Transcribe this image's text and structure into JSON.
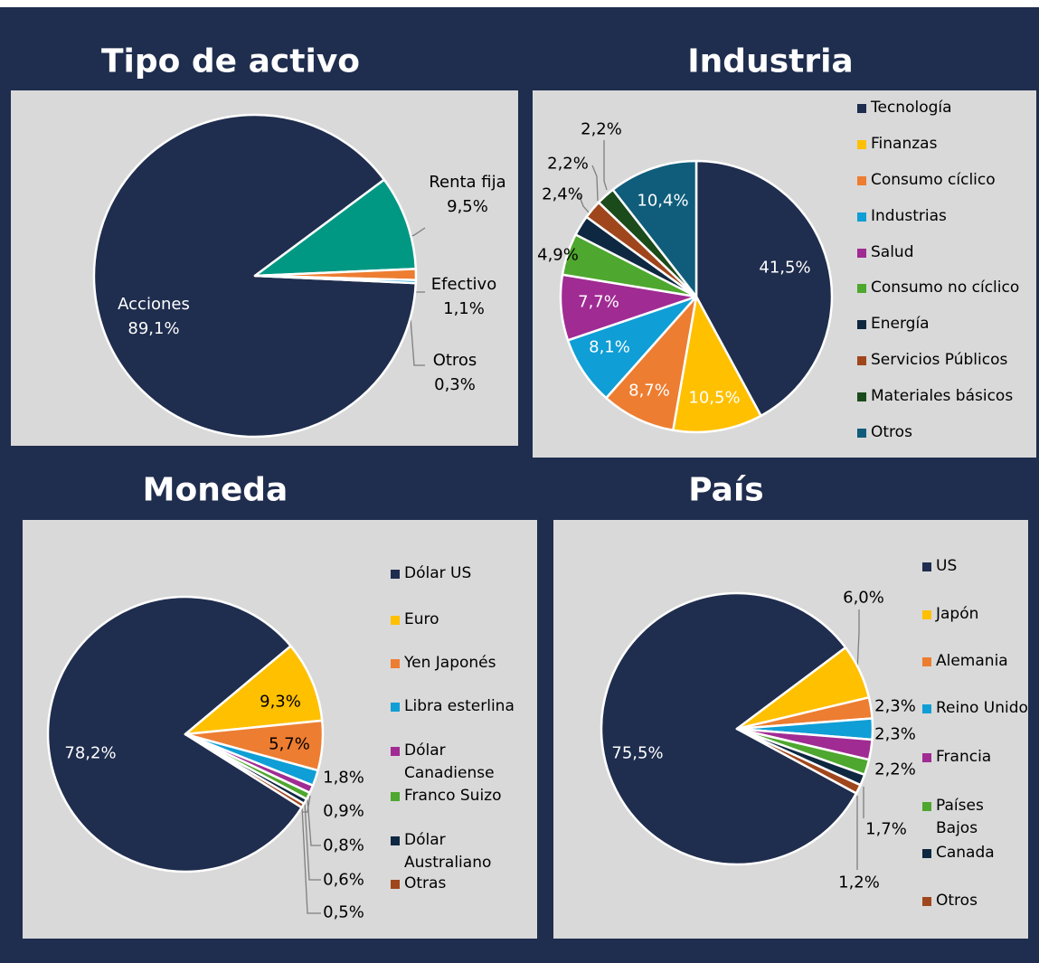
{
  "chart_data": [
    {
      "type": "pie",
      "title": "Tipo de activo",
      "categories": [
        "Acciones",
        "Renta fija",
        "Efectivo",
        "Otros"
      ],
      "values": [
        89.1,
        9.5,
        1.1,
        0.3
      ],
      "value_labels": [
        "89,1%",
        "9,5%",
        "1,1%",
        "0,3%"
      ],
      "colors": [
        "#1f2d4e",
        "#009883",
        "#ed7d31",
        "#0f9ed5"
      ]
    },
    {
      "type": "pie",
      "title": "Industria",
      "categories": [
        "Tecnología",
        "Finanzas",
        "Consumo cíclico",
        "Industrias",
        "Salud",
        "Consumo no cíclico",
        "Energía",
        "Servicios Públicos",
        "Materiales básicos",
        "Otros"
      ],
      "values": [
        41.5,
        10.5,
        8.7,
        8.1,
        7.7,
        4.9,
        2.4,
        2.2,
        2.2,
        10.4
      ],
      "value_labels": [
        "41,5%",
        "10,5%",
        "8,7%",
        "8,1%",
        "7,7%",
        "4,9%",
        "2,4%",
        "2,2%",
        "2,2%",
        "10,4%"
      ],
      "colors": [
        "#1f2d4e",
        "#ffc000",
        "#ed7d31",
        "#0f9ed5",
        "#a02b93",
        "#4ea72e",
        "#0e2841",
        "#a0461c",
        "#1b4a1b",
        "#0f5d7b"
      ],
      "legend": "right"
    },
    {
      "type": "pie",
      "title": "Moneda",
      "categories": [
        "Dólar US",
        "Euro",
        "Yen Japonés",
        "Libra esterlina",
        "Dólar Canadiense",
        "Franco Suizo",
        "Dólar Australiano",
        "Otras"
      ],
      "values": [
        78.2,
        9.3,
        5.7,
        1.8,
        0.9,
        0.8,
        0.6,
        0.5
      ],
      "value_labels": [
        "78,2%",
        "9,3%",
        "5,7%",
        "1,8%",
        "0,9%",
        "0,8%",
        "0,6%",
        "0,5%"
      ],
      "colors": [
        "#1f2d4e",
        "#ffc000",
        "#ed7d31",
        "#0f9ed5",
        "#a02b93",
        "#4ea72e",
        "#0e2841",
        "#a0461c"
      ],
      "legend": "right"
    },
    {
      "type": "pie",
      "title": "País",
      "categories": [
        "US",
        "Japón",
        "Alemania",
        "Reino Unido",
        "Francia",
        "Países Bajos",
        "Canada",
        "Otros"
      ],
      "values": [
        75.5,
        6.0,
        2.3,
        2.3,
        2.2,
        1.7,
        1.2,
        1.0
      ],
      "value_labels": [
        "75,5%",
        "6,0%",
        "2,3%",
        "2,3%",
        "2,2%",
        "1,7%",
        "1,2%",
        null
      ],
      "colors": [
        "#1f2d4e",
        "#ffc000",
        "#ed7d31",
        "#0f9ed5",
        "#a02b93",
        "#4ea72e",
        "#0e2841",
        "#a0461c"
      ],
      "legend": "right"
    }
  ]
}
